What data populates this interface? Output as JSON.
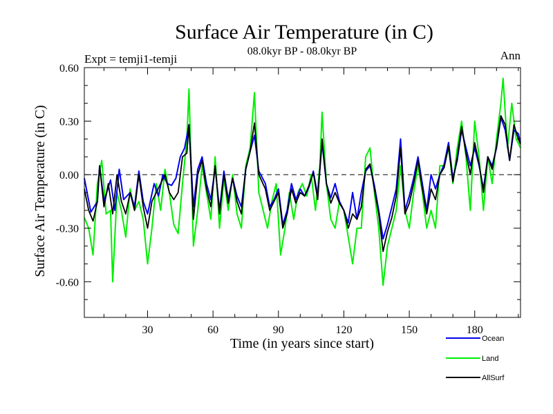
{
  "chart_data": {
    "type": "line",
    "title": "Surface Air Temperature (in C)",
    "subtitle": "08.0kyr BP - 08.0kyr BP",
    "left_label": "Expt = temji1-temji",
    "right_label": "Ann",
    "xlabel": "Time (in years since start)",
    "ylabel": "Surface Air Temperature (in C)",
    "xlim": [
      1,
      201
    ],
    "ylim": [
      -0.8,
      0.6
    ],
    "x_ticks": [
      30,
      60,
      90,
      120,
      150,
      180
    ],
    "x_tick_labels": [
      "30",
      "60",
      "90",
      "120",
      "150",
      "180"
    ],
    "y_ticks": [
      0.6,
      0.3,
      0.0,
      -0.3,
      -0.6
    ],
    "y_tick_labels": [
      "0.60",
      "0.30",
      "0.00",
      "-0.30",
      "-0.60"
    ],
    "zero_line": "dashed",
    "legend_position": "below-right",
    "series_anchors": [
      {
        "name": "Ocean",
        "color": "#0000ee",
        "points": [
          [
            1,
            -0.02
          ],
          [
            4,
            -0.21
          ],
          [
            7,
            -0.15
          ],
          [
            8,
            0.05
          ],
          [
            10,
            -0.15
          ],
          [
            13,
            -0.03
          ],
          [
            15,
            -0.2
          ],
          [
            17,
            0.03
          ],
          [
            19,
            -0.14
          ],
          [
            22,
            -0.1
          ],
          [
            24,
            -0.18
          ],
          [
            26,
            0.02
          ],
          [
            28,
            -0.15
          ],
          [
            30,
            -0.22
          ],
          [
            33,
            -0.05
          ],
          [
            35,
            -0.12
          ],
          [
            37,
            0.0
          ],
          [
            39,
            -0.05
          ],
          [
            41,
            -0.06
          ],
          [
            43,
            -0.02
          ],
          [
            45,
            0.1
          ],
          [
            47,
            0.15
          ],
          [
            49,
            0.28
          ],
          [
            51,
            -0.18
          ],
          [
            53,
            0.03
          ],
          [
            55,
            0.1
          ],
          [
            57,
            -0.05
          ],
          [
            59,
            -0.14
          ],
          [
            61,
            0.04
          ],
          [
            63,
            -0.2
          ],
          [
            65,
            0.02
          ],
          [
            67,
            -0.14
          ],
          [
            69,
            -0.02
          ],
          [
            71,
            -0.12
          ],
          [
            73,
            -0.18
          ],
          [
            75,
            0.03
          ],
          [
            77,
            0.13
          ],
          [
            79,
            0.22
          ],
          [
            81,
            0.02
          ],
          [
            84,
            -0.05
          ],
          [
            86,
            -0.18
          ],
          [
            88,
            -0.14
          ],
          [
            90,
            -0.08
          ],
          [
            92,
            -0.28
          ],
          [
            94,
            -0.2
          ],
          [
            96,
            -0.05
          ],
          [
            98,
            -0.14
          ],
          [
            100,
            -0.08
          ],
          [
            102,
            -0.12
          ],
          [
            104,
            -0.07
          ],
          [
            106,
            0.02
          ],
          [
            108,
            -0.12
          ],
          [
            110,
            0.18
          ],
          [
            112,
            -0.05
          ],
          [
            114,
            -0.13
          ],
          [
            116,
            -0.05
          ],
          [
            118,
            -0.15
          ],
          [
            120,
            -0.2
          ],
          [
            122,
            -0.27
          ],
          [
            124,
            -0.1
          ],
          [
            126,
            -0.25
          ],
          [
            128,
            -0.1
          ],
          [
            130,
            0.02
          ],
          [
            132,
            0.05
          ],
          [
            134,
            -0.06
          ],
          [
            136,
            -0.2
          ],
          [
            138,
            -0.36
          ],
          [
            140,
            -0.28
          ],
          [
            142,
            -0.18
          ],
          [
            144,
            -0.08
          ],
          [
            146,
            0.2
          ],
          [
            148,
            -0.2
          ],
          [
            150,
            -0.12
          ],
          [
            152,
            -0.02
          ],
          [
            154,
            0.1
          ],
          [
            156,
            -0.05
          ],
          [
            158,
            -0.2
          ],
          [
            160,
            0.0
          ],
          [
            162,
            -0.08
          ],
          [
            164,
            0.0
          ],
          [
            166,
            0.06
          ],
          [
            168,
            0.18
          ],
          [
            170,
            -0.02
          ],
          [
            172,
            0.08
          ],
          [
            174,
            0.25
          ],
          [
            176,
            0.15
          ],
          [
            178,
            0.05
          ],
          [
            180,
            0.15
          ],
          [
            182,
            0.05
          ],
          [
            184,
            -0.08
          ],
          [
            186,
            0.1
          ],
          [
            188,
            0.05
          ],
          [
            190,
            0.15
          ],
          [
            192,
            0.32
          ],
          [
            194,
            0.25
          ],
          [
            196,
            0.08
          ],
          [
            198,
            0.25
          ],
          [
            200,
            0.23
          ],
          [
            201,
            0.18
          ]
        ]
      },
      {
        "name": "Land",
        "color": "#00ee00",
        "points": [
          [
            1,
            -0.24
          ],
          [
            3,
            -0.3
          ],
          [
            5,
            -0.45
          ],
          [
            7,
            -0.05
          ],
          [
            9,
            0.08
          ],
          [
            11,
            -0.22
          ],
          [
            13,
            -0.2
          ],
          [
            14,
            -0.6
          ],
          [
            16,
            -0.1
          ],
          [
            18,
            -0.2
          ],
          [
            20,
            -0.35
          ],
          [
            22,
            -0.08
          ],
          [
            24,
            -0.2
          ],
          [
            26,
            -0.15
          ],
          [
            28,
            -0.25
          ],
          [
            30,
            -0.5
          ],
          [
            32,
            -0.3
          ],
          [
            34,
            -0.05
          ],
          [
            36,
            -0.2
          ],
          [
            38,
            0.03
          ],
          [
            40,
            -0.1
          ],
          [
            42,
            -0.28
          ],
          [
            44,
            -0.33
          ],
          [
            46,
            -0.05
          ],
          [
            48,
            0.2
          ],
          [
            49,
            0.48
          ],
          [
            51,
            -0.4
          ],
          [
            53,
            -0.2
          ],
          [
            55,
            0.05
          ],
          [
            57,
            -0.1
          ],
          [
            59,
            -0.25
          ],
          [
            61,
            0.1
          ],
          [
            63,
            -0.3
          ],
          [
            65,
            -0.02
          ],
          [
            67,
            -0.2
          ],
          [
            69,
            0.0
          ],
          [
            71,
            -0.22
          ],
          [
            73,
            -0.3
          ],
          [
            75,
            0.05
          ],
          [
            77,
            0.15
          ],
          [
            79,
            0.46
          ],
          [
            81,
            -0.1
          ],
          [
            83,
            -0.2
          ],
          [
            85,
            -0.3
          ],
          [
            87,
            -0.15
          ],
          [
            89,
            -0.05
          ],
          [
            91,
            -0.45
          ],
          [
            93,
            -0.3
          ],
          [
            95,
            -0.1
          ],
          [
            97,
            -0.25
          ],
          [
            99,
            -0.1
          ],
          [
            101,
            -0.05
          ],
          [
            103,
            -0.12
          ],
          [
            105,
            0.0
          ],
          [
            107,
            -0.2
          ],
          [
            109,
            0.05
          ],
          [
            110,
            0.35
          ],
          [
            112,
            -0.05
          ],
          [
            114,
            -0.25
          ],
          [
            116,
            -0.3
          ],
          [
            118,
            -0.15
          ],
          [
            120,
            -0.2
          ],
          [
            122,
            -0.35
          ],
          [
            124,
            -0.5
          ],
          [
            126,
            -0.3
          ],
          [
            128,
            -0.3
          ],
          [
            130,
            0.1
          ],
          [
            132,
            0.15
          ],
          [
            134,
            -0.1
          ],
          [
            136,
            -0.3
          ],
          [
            138,
            -0.62
          ],
          [
            140,
            -0.4
          ],
          [
            142,
            -0.3
          ],
          [
            144,
            -0.2
          ],
          [
            146,
            0.05
          ],
          [
            148,
            -0.2
          ],
          [
            150,
            -0.3
          ],
          [
            152,
            -0.1
          ],
          [
            154,
            0.05
          ],
          [
            156,
            -0.1
          ],
          [
            158,
            -0.3
          ],
          [
            160,
            -0.2
          ],
          [
            162,
            -0.3
          ],
          [
            164,
            0.05
          ],
          [
            166,
            0.05
          ],
          [
            168,
            0.15
          ],
          [
            170,
            -0.05
          ],
          [
            172,
            0.15
          ],
          [
            174,
            0.3
          ],
          [
            176,
            0.1
          ],
          [
            178,
            -0.2
          ],
          [
            180,
            0.3
          ],
          [
            182,
            0.1
          ],
          [
            184,
            -0.2
          ],
          [
            186,
            0.1
          ],
          [
            188,
            -0.05
          ],
          [
            190,
            0.2
          ],
          [
            192,
            0.4
          ],
          [
            193,
            0.54
          ],
          [
            195,
            0.15
          ],
          [
            197,
            0.4
          ],
          [
            199,
            0.2
          ],
          [
            201,
            0.15
          ]
        ]
      },
      {
        "name": "AllSurf",
        "color": "#000000",
        "points": [
          [
            1,
            -0.08
          ],
          [
            3,
            -0.2
          ],
          [
            5,
            -0.26
          ],
          [
            7,
            -0.15
          ],
          [
            8,
            0.05
          ],
          [
            10,
            -0.18
          ],
          [
            12,
            -0.05
          ],
          [
            14,
            -0.22
          ],
          [
            16,
            0.0
          ],
          [
            18,
            -0.15
          ],
          [
            20,
            -0.22
          ],
          [
            22,
            -0.1
          ],
          [
            24,
            -0.2
          ],
          [
            26,
            0.0
          ],
          [
            28,
            -0.18
          ],
          [
            30,
            -0.3
          ],
          [
            32,
            -0.15
          ],
          [
            34,
            -0.1
          ],
          [
            36,
            -0.05
          ],
          [
            38,
            0.0
          ],
          [
            40,
            -0.1
          ],
          [
            42,
            -0.14
          ],
          [
            44,
            -0.1
          ],
          [
            46,
            0.1
          ],
          [
            48,
            0.12
          ],
          [
            49,
            0.28
          ],
          [
            51,
            -0.25
          ],
          [
            53,
            0.0
          ],
          [
            55,
            0.08
          ],
          [
            57,
            -0.08
          ],
          [
            59,
            -0.18
          ],
          [
            61,
            0.05
          ],
          [
            63,
            -0.22
          ],
          [
            65,
            0.0
          ],
          [
            67,
            -0.16
          ],
          [
            69,
            -0.02
          ],
          [
            71,
            -0.15
          ],
          [
            73,
            -0.22
          ],
          [
            75,
            0.03
          ],
          [
            77,
            0.13
          ],
          [
            79,
            0.29
          ],
          [
            81,
            0.0
          ],
          [
            84,
            -0.08
          ],
          [
            86,
            -0.2
          ],
          [
            88,
            -0.15
          ],
          [
            90,
            -0.1
          ],
          [
            92,
            -0.3
          ],
          [
            94,
            -0.22
          ],
          [
            96,
            -0.08
          ],
          [
            98,
            -0.16
          ],
          [
            100,
            -0.1
          ],
          [
            102,
            -0.12
          ],
          [
            104,
            -0.06
          ],
          [
            106,
            0.01
          ],
          [
            108,
            -0.14
          ],
          [
            110,
            0.2
          ],
          [
            112,
            -0.05
          ],
          [
            114,
            -0.16
          ],
          [
            116,
            -0.1
          ],
          [
            118,
            -0.16
          ],
          [
            120,
            -0.2
          ],
          [
            122,
            -0.3
          ],
          [
            124,
            -0.22
          ],
          [
            126,
            -0.25
          ],
          [
            128,
            -0.18
          ],
          [
            130,
            0.03
          ],
          [
            132,
            0.06
          ],
          [
            134,
            -0.08
          ],
          [
            136,
            -0.22
          ],
          [
            138,
            -0.43
          ],
          [
            140,
            -0.32
          ],
          [
            142,
            -0.24
          ],
          [
            144,
            -0.12
          ],
          [
            146,
            0.15
          ],
          [
            148,
            -0.22
          ],
          [
            150,
            -0.16
          ],
          [
            152,
            -0.05
          ],
          [
            154,
            0.08
          ],
          [
            156,
            -0.08
          ],
          [
            158,
            -0.22
          ],
          [
            160,
            -0.08
          ],
          [
            162,
            -0.14
          ],
          [
            164,
            0.0
          ],
          [
            166,
            0.04
          ],
          [
            168,
            0.16
          ],
          [
            170,
            -0.04
          ],
          [
            172,
            0.1
          ],
          [
            174,
            0.27
          ],
          [
            176,
            0.12
          ],
          [
            178,
            0.0
          ],
          [
            180,
            0.18
          ],
          [
            182,
            0.06
          ],
          [
            184,
            -0.1
          ],
          [
            186,
            0.1
          ],
          [
            188,
            0.03
          ],
          [
            190,
            0.16
          ],
          [
            192,
            0.33
          ],
          [
            194,
            0.28
          ],
          [
            196,
            0.08
          ],
          [
            198,
            0.28
          ],
          [
            200,
            0.2
          ],
          [
            201,
            0.17
          ]
        ]
      }
    ]
  }
}
